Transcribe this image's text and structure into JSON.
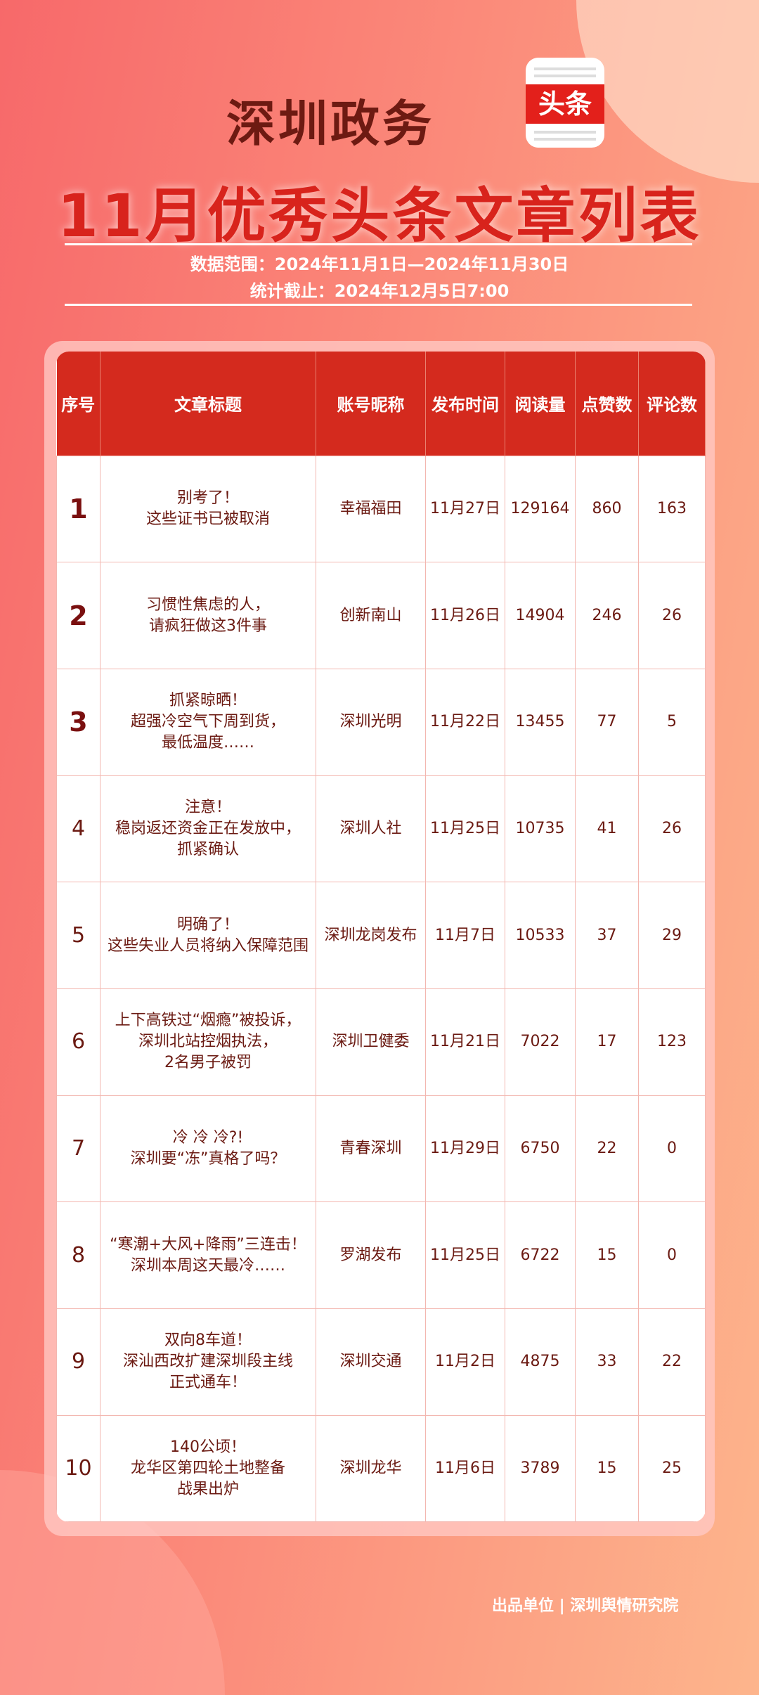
{
  "header": {
    "title_line1": "深圳政务",
    "logo_text": "头条",
    "title_line2": "11月优秀头条文章列表",
    "data_range": "数据范围：2024年11月1日—2024年11月30日",
    "cutoff": "统计截止：2024年12月5日7:00"
  },
  "table": {
    "columns": [
      "序号",
      "文章标题",
      "账号昵称",
      "发布时间",
      "阅读量",
      "点赞数",
      "评论数"
    ],
    "rows": [
      {
        "rank": "1",
        "title": [
          "别考了！",
          "这些证书已被取消"
        ],
        "account": "幸福福田",
        "date": "11月27日",
        "reads": "129164",
        "likes": "860",
        "comments": "163"
      },
      {
        "rank": "2",
        "title": [
          "习惯性焦虑的人，",
          "请疯狂做这3件事"
        ],
        "account": "创新南山",
        "date": "11月26日",
        "reads": "14904",
        "likes": "246",
        "comments": "26"
      },
      {
        "rank": "3",
        "title": [
          "抓紧晾晒！",
          "超强冷空气下周到货，",
          "最低温度……"
        ],
        "account": "深圳光明",
        "date": "11月22日",
        "reads": "13455",
        "likes": "77",
        "comments": "5"
      },
      {
        "rank": "4",
        "title": [
          "注意！",
          "稳岗返还资金正在发放中，",
          "抓紧确认"
        ],
        "account": "深圳人社",
        "date": "11月25日",
        "reads": "10735",
        "likes": "41",
        "comments": "26"
      },
      {
        "rank": "5",
        "title": [
          "明确了！",
          "这些失业人员将纳入保障范围"
        ],
        "account": "深圳龙岗发布",
        "date": "11月7日",
        "reads": "10533",
        "likes": "37",
        "comments": "29"
      },
      {
        "rank": "6",
        "title": [
          "上下高铁过“烟瘾”被投诉，",
          "深圳北站控烟执法，",
          "2名男子被罚"
        ],
        "account": "深圳卫健委",
        "date": "11月21日",
        "reads": "7022",
        "likes": "17",
        "comments": "123"
      },
      {
        "rank": "7",
        "title": [
          "冷 冷 冷?!",
          "深圳要“冻”真格了吗？"
        ],
        "account": "青春深圳",
        "date": "11月29日",
        "reads": "6750",
        "likes": "22",
        "comments": "0"
      },
      {
        "rank": "8",
        "title": [
          "“寒潮+大风+降雨”三连击！",
          "深圳本周这天最冷……"
        ],
        "account": "罗湖发布",
        "date": "11月25日",
        "reads": "6722",
        "likes": "15",
        "comments": "0"
      },
      {
        "rank": "9",
        "title": [
          "双向8车道！",
          "深汕西改扩建深圳段主线",
          "正式通车！"
        ],
        "account": "深圳交通",
        "date": "11月2日",
        "reads": "4875",
        "likes": "33",
        "comments": "22"
      },
      {
        "rank": "10",
        "title": [
          "140公顷！",
          "龙华区第四轮土地整备",
          "战果出炉"
        ],
        "account": "深圳龙华",
        "date": "11月6日",
        "reads": "3789",
        "likes": "15",
        "comments": "25"
      }
    ]
  },
  "footer": "出品单位 | 深圳舆情研究院",
  "colors": {
    "header_red": "#d42a1e",
    "text_dark_red": "#6b1a12",
    "title_red": "#d8231c"
  }
}
